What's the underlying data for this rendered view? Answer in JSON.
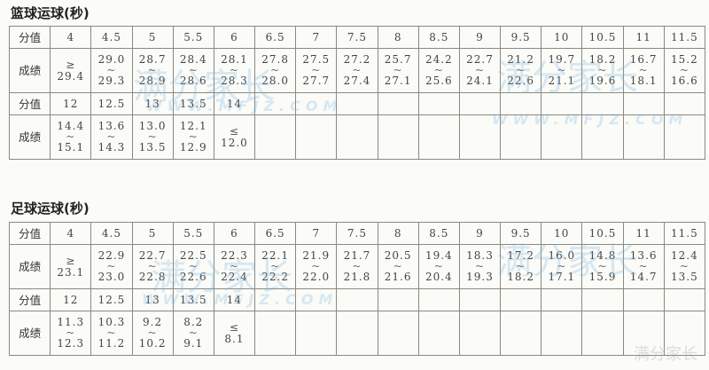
{
  "sections": [
    {
      "title": "篮球运球(秒)",
      "row_label_score": "分值",
      "row_label_result": "成绩",
      "top": {
        "scores": [
          "4",
          "4.5",
          "5",
          "5.5",
          "6",
          "6.5",
          "7",
          "7.5",
          "8",
          "8.5",
          "9",
          "9.5",
          "10",
          "10.5",
          "11",
          "11.5"
        ],
        "results": [
          [
            "≥",
            "29.4"
          ],
          [
            "29.0",
            "~",
            "29.3"
          ],
          [
            "28.7",
            "~",
            "28.9"
          ],
          [
            "28.4",
            "~",
            "28.6"
          ],
          [
            "28.1",
            "~",
            "28.3"
          ],
          [
            "27.8",
            "~",
            "28.0"
          ],
          [
            "27.5",
            "~",
            "27.7"
          ],
          [
            "27.2",
            "~",
            "27.4"
          ],
          [
            "25.7",
            "~",
            "27.1"
          ],
          [
            "24.2",
            "~",
            "25.6"
          ],
          [
            "22.7",
            "~",
            "24.1"
          ],
          [
            "21.2",
            "~",
            "22.6"
          ],
          [
            "19.7",
            "~",
            "21.1"
          ],
          [
            "18.2",
            "~",
            "19.6"
          ],
          [
            "16.7",
            "~",
            "18.1"
          ],
          [
            "15.2",
            "~",
            "16.6"
          ]
        ]
      },
      "bottom": {
        "scores": [
          "12",
          "12.5",
          "13",
          "13.5",
          "14"
        ],
        "results": [
          [
            "14.4",
            "~",
            "15.1"
          ],
          [
            "13.6",
            "~",
            "14.3"
          ],
          [
            "13.0",
            "~",
            "13.5"
          ],
          [
            "12.1",
            "~",
            "12.9"
          ],
          [
            "≤",
            "12.0"
          ]
        ]
      }
    },
    {
      "title": "足球运球(秒)",
      "row_label_score": "分值",
      "row_label_result": "成绩",
      "top": {
        "scores": [
          "4",
          "4.5",
          "5",
          "5.5",
          "6",
          "6.5",
          "7",
          "7.5",
          "8",
          "8.5",
          "9",
          "9.5",
          "10",
          "10.5",
          "11",
          "11.5"
        ],
        "results": [
          [
            "≥",
            "23.1"
          ],
          [
            "22.9",
            "~",
            "23.0"
          ],
          [
            "22.7",
            "~",
            "22.8"
          ],
          [
            "22.5",
            "~",
            "22.6"
          ],
          [
            "22.3",
            "~",
            "22.4"
          ],
          [
            "22.1",
            "~",
            "22.2"
          ],
          [
            "21.9",
            "~",
            "22.0"
          ],
          [
            "21.7",
            "~",
            "21.8"
          ],
          [
            "20.5",
            "~",
            "21.6"
          ],
          [
            "19.4",
            "~",
            "20.4"
          ],
          [
            "18.3",
            "~",
            "19.3"
          ],
          [
            "17.2",
            "~",
            "18.2"
          ],
          [
            "16.0",
            "~",
            "17.1"
          ],
          [
            "14.8",
            "~",
            "15.9"
          ],
          [
            "13.6",
            "~",
            "14.7"
          ],
          [
            "12.4",
            "~",
            "13.5"
          ]
        ]
      },
      "bottom": {
        "scores": [
          "12",
          "12.5",
          "13",
          "13.5",
          "14"
        ],
        "results": [
          [
            "11.3",
            "~",
            "12.3"
          ],
          [
            "10.3",
            "~",
            "11.2"
          ],
          [
            "9.2",
            "~",
            "10.2"
          ],
          [
            "8.2",
            "~",
            "9.1"
          ],
          [
            "≤",
            "8.1"
          ]
        ]
      }
    }
  ],
  "watermark": {
    "text": "满分家长",
    "url_text": "WWW.MFJZ.COM"
  }
}
